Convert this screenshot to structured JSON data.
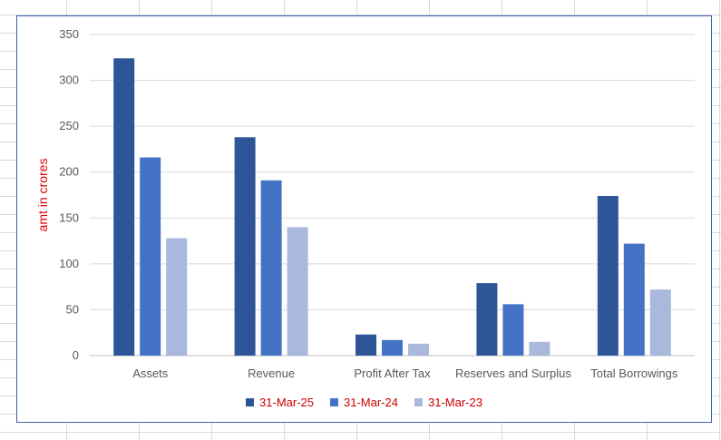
{
  "chart_data": {
    "type": "bar",
    "categories": [
      "Assets",
      "Revenue",
      "Profit After Tax",
      "Reserves and Surplus",
      "Total Borrowings"
    ],
    "series": [
      {
        "name": "31-Mar-25",
        "color": "#2e5597",
        "values": [
          324,
          238,
          23,
          79,
          174
        ]
      },
      {
        "name": "31-Mar-24",
        "color": "#4472c4",
        "values": [
          216,
          191,
          17,
          56,
          122
        ]
      },
      {
        "name": "31-Mar-23",
        "color": "#a9b8dc",
        "values": [
          128,
          140,
          13,
          15,
          72
        ]
      }
    ],
    "title": "",
    "xlabel": "",
    "ylabel": "amt in crores",
    "ylim": [
      0,
      350
    ],
    "yticks": [
      0,
      50,
      100,
      150,
      200,
      250,
      300,
      350
    ],
    "grid": true,
    "legend_position": "bottom"
  }
}
